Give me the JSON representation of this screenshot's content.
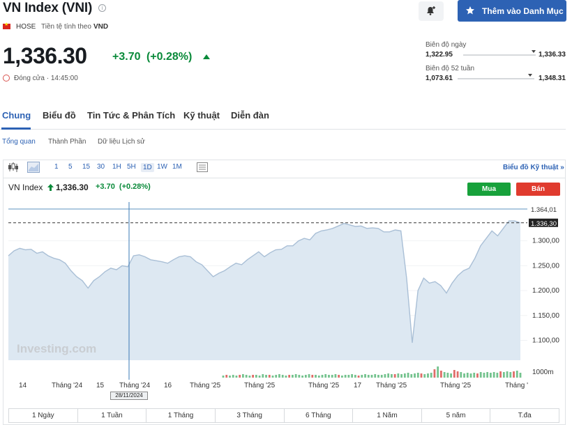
{
  "header": {
    "title": "VN Index (VNI)",
    "exchange": "HOSE",
    "currency_label": "Tiền tệ tính theo",
    "currency": "VND",
    "watchlist_button": "Thêm vào Danh Mục"
  },
  "quote": {
    "price": "1,336.30",
    "change": "+3.70",
    "change_pct": "(+0.28%)",
    "status": "Đóng cửa · 14:45:00"
  },
  "ranges": {
    "day_label": "Biên độ ngày",
    "day_low": "1,322.95",
    "day_high": "1,336.33",
    "week52_label": "Biên độ 52 tuần",
    "week52_low": "1,073.61",
    "week52_high": "1,348.31"
  },
  "tabs": [
    "Chung",
    "Biểu đồ",
    "Tin Tức & Phân Tích",
    "Kỹ thuật",
    "Diễn đàn"
  ],
  "subtabs": [
    "Tổng quan",
    "Thành Phần",
    "Dữ liệu Lịch sử"
  ],
  "toolbar": {
    "intervals": [
      "1",
      "5",
      "15",
      "30",
      "1H",
      "5H",
      "1D",
      "1W",
      "1M"
    ],
    "selected_interval": "1D",
    "tech_chart_link": "Biểu đồ Kỹ thuật »"
  },
  "chart_legend": {
    "name": "VN Index",
    "price": "1,336.30",
    "change": "+3.70",
    "change_pct": "(+0.28%)"
  },
  "trade": {
    "buy": "Mua",
    "sell": "Bán"
  },
  "chart_data": {
    "type": "area",
    "y_ticks": [
      "1.300,00",
      "1.250,00",
      "1.200,00",
      "1.150,00",
      "1.100,00"
    ],
    "ylim": [
      1060,
      1392
    ],
    "high_label": "1.364,01",
    "last_label": "1.336,30",
    "high_value": 1364.01,
    "last_value": 1336.3,
    "volume_label": "1000m",
    "x_tick_labels": [
      "14",
      "Tháng '24",
      "15",
      "Tháng '24",
      "16",
      "Tháng '25",
      "Tháng '25",
      "Tháng '25",
      "17",
      "Tháng '25",
      "Tháng '25",
      "Tháng '"
    ],
    "crosshair_date": "28/11/2024",
    "watermark": "Investing.com",
    "series": [
      {
        "values": [
          1270,
          1280,
          1285,
          1282,
          1283,
          1275,
          1278,
          1270,
          1265,
          1262,
          1255,
          1240,
          1228,
          1220,
          1205,
          1220,
          1228,
          1238,
          1245,
          1242,
          1250,
          1248,
          1270,
          1272,
          1268,
          1262,
          1260,
          1258,
          1255,
          1262,
          1268,
          1270,
          1268,
          1258,
          1252,
          1240,
          1228,
          1235,
          1240,
          1248,
          1255,
          1252,
          1262,
          1270,
          1278,
          1268,
          1276,
          1282,
          1283,
          1290,
          1290,
          1300,
          1305,
          1302,
          1315,
          1320,
          1322,
          1325,
          1330,
          1335,
          1332,
          1329,
          1330,
          1325,
          1326,
          1325,
          1318,
          1318,
          1322,
          1320,
          1225,
          1095,
          1200,
          1225,
          1215,
          1218,
          1210,
          1195,
          1215,
          1230,
          1240,
          1245,
          1265,
          1290,
          1305,
          1320,
          1310,
          1325,
          1340,
          1340,
          1336.3
        ]
      }
    ],
    "volumes": [
      3,
      4,
      3,
      4,
      3,
      4,
      5,
      4,
      3,
      4,
      4,
      3,
      5,
      4,
      4,
      3,
      4,
      5,
      4,
      3,
      4,
      4,
      5,
      4,
      3,
      4,
      5,
      4,
      4,
      3,
      4,
      5,
      4,
      4,
      5,
      4,
      3,
      4,
      4,
      5,
      4,
      3,
      4,
      5,
      4,
      4,
      5,
      4,
      4,
      5,
      6,
      5,
      5,
      6,
      5,
      6,
      7,
      5,
      6,
      7,
      6,
      5,
      6,
      7,
      12,
      16,
      10,
      8,
      7,
      6,
      11,
      9,
      8,
      6,
      7,
      6,
      7,
      6,
      8,
      7,
      8,
      7,
      8,
      7,
      9,
      8,
      9,
      8,
      9,
      10,
      7
    ],
    "red_volume_indices": [
      1,
      5,
      9,
      14,
      20,
      27,
      35,
      41,
      52,
      60,
      64,
      66,
      70,
      71,
      77,
      84,
      88
    ]
  },
  "periods": [
    "1 Ngày",
    "1 Tuần",
    "1 Tháng",
    "3 Tháng",
    "6 Tháng",
    "1 Năm",
    "5 năm",
    "T.đa"
  ]
}
